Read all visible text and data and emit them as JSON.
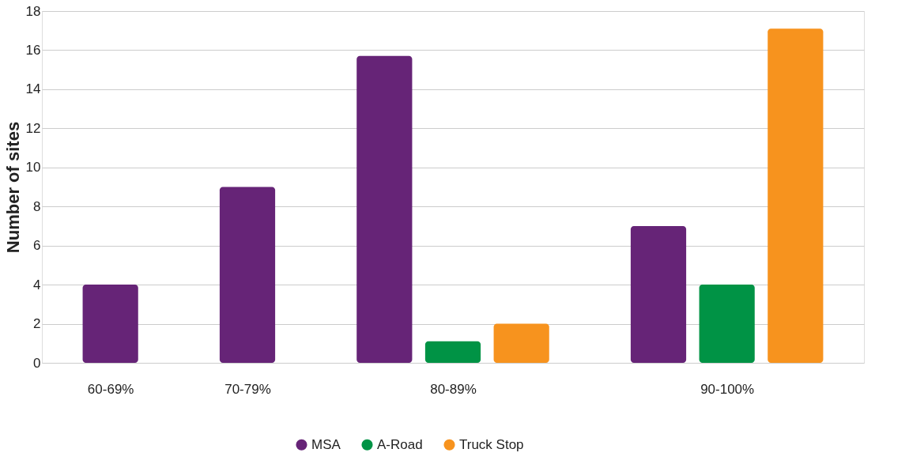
{
  "chart_data": {
    "type": "bar",
    "ylabel": "Number of sites",
    "categories": [
      "60-69%",
      "70-79%",
      "80-89%",
      "90-100%"
    ],
    "series": [
      {
        "name": "MSA",
        "color": "#662477",
        "values": [
          4,
          9,
          15.7,
          7
        ]
      },
      {
        "name": "A-Road",
        "color": "#009345",
        "values": [
          null,
          null,
          1.1,
          4
        ]
      },
      {
        "name": "Truck Stop",
        "color": "#f7931e",
        "values": [
          null,
          null,
          2,
          17.1
        ]
      }
    ],
    "ylim": [
      0,
      18
    ],
    "yticks": [
      0,
      2,
      4,
      6,
      8,
      10,
      12,
      14,
      16,
      18
    ],
    "grid": "y",
    "legend": "bottom"
  }
}
